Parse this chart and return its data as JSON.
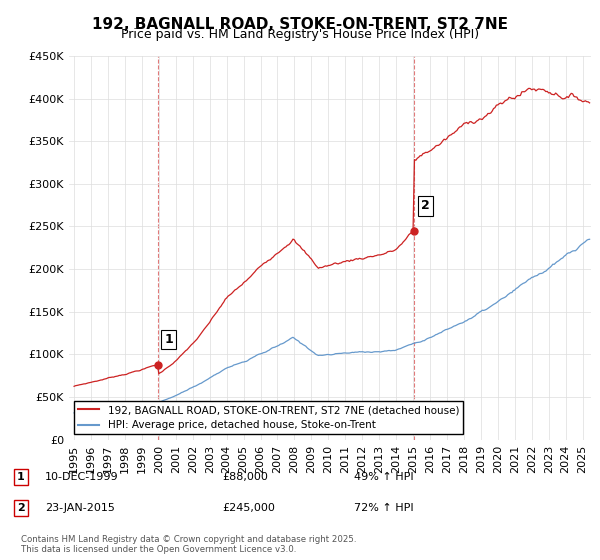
{
  "title": "192, BAGNALL ROAD, STOKE-ON-TRENT, ST2 7NE",
  "subtitle": "Price paid vs. HM Land Registry's House Price Index (HPI)",
  "footnote": "Contains HM Land Registry data © Crown copyright and database right 2025.\nThis data is licensed under the Open Government Licence v3.0.",
  "legend_entries": [
    "192, BAGNALL ROAD, STOKE-ON-TRENT, ST2 7NE (detached house)",
    "HPI: Average price, detached house, Stoke-on-Trent"
  ],
  "transaction1": {
    "label": "1",
    "date": "10-DEC-1999",
    "price": "£88,000",
    "hpi": "49% ↑ HPI"
  },
  "transaction2": {
    "label": "2",
    "date": "23-JAN-2015",
    "price": "£245,000",
    "hpi": "72% ↑ HPI"
  },
  "ylim": [
    0,
    450000
  ],
  "yticks": [
    0,
    50000,
    100000,
    150000,
    200000,
    250000,
    300000,
    350000,
    400000,
    450000
  ],
  "hpi_color": "#6699cc",
  "price_color": "#cc2222",
  "vline_color": "#cc2222",
  "background_color": "#ffffff",
  "grid_color": "#dddddd",
  "title_fontsize": 11,
  "subtitle_fontsize": 9,
  "tick_fontsize": 8,
  "annotation_fontsize": 9,
  "x_start_year": 1995,
  "x_end_year": 2025,
  "sale1_year": 1999.94,
  "sale1_price": 88000,
  "sale2_year": 2015.06,
  "sale2_price": 245000
}
